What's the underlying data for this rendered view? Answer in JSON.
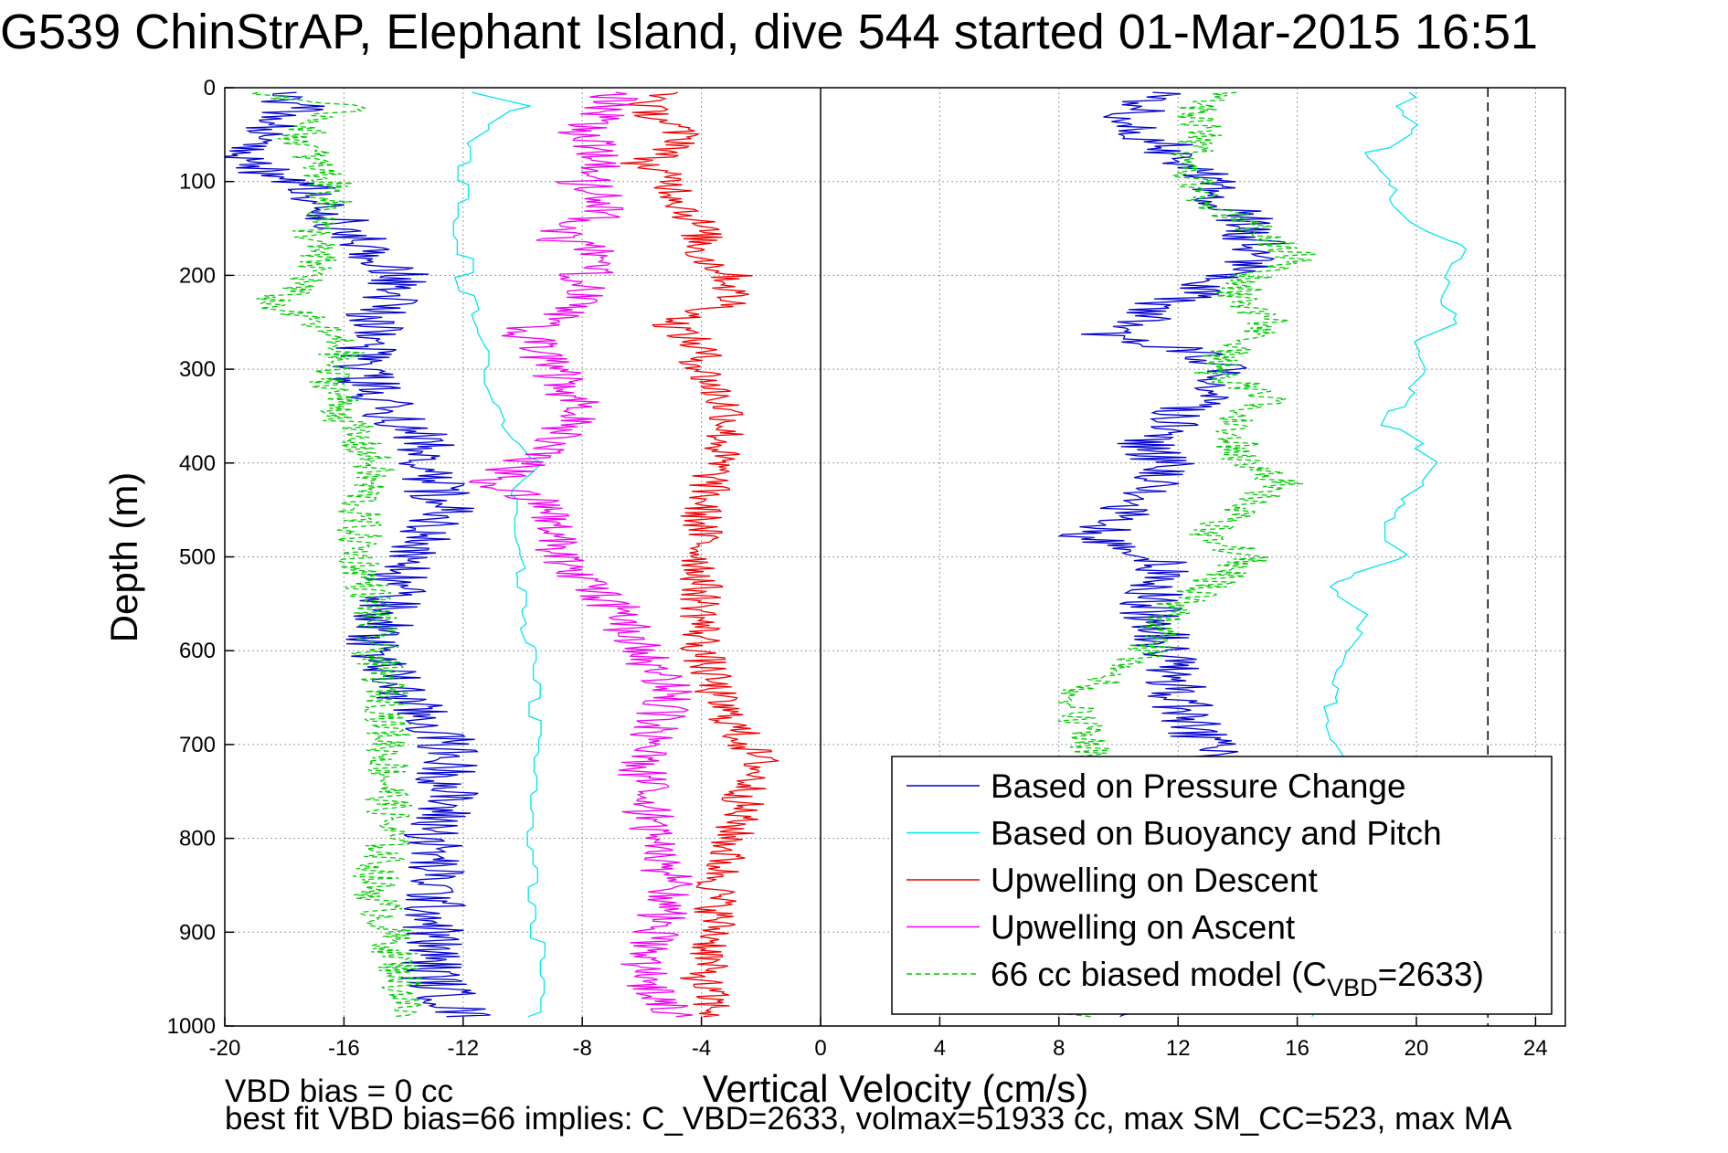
{
  "title": "G539 ChinStrAP, Elephant Island, dive 544 started 01-Mar-2015 16:51",
  "footer": {
    "line1": "VBD bias = 0 cc",
    "line2": "best fit VBD bias=66 implies: C_VBD=2633, volmax=51933 cc, max SM_CC=523, max MA"
  },
  "chart_data": {
    "type": "line",
    "xlabel": "Vertical Velocity (cm/s)",
    "ylabel": "Depth (m)",
    "xlim": [
      -20,
      25
    ],
    "ylim": [
      1000,
      0
    ],
    "y_reversed": true,
    "xticks": [
      -20,
      -16,
      -12,
      -8,
      -4,
      0,
      4,
      8,
      12,
      16,
      20,
      24
    ],
    "yticks": [
      0,
      100,
      200,
      300,
      400,
      500,
      600,
      700,
      800,
      900,
      1000
    ],
    "grid": true,
    "legend_position": "bottom-right",
    "reference_lines": [
      {
        "x": 0,
        "style": "solid",
        "color": "#000000"
      },
      {
        "x": 22.4,
        "style": "dashed",
        "color": "#000000"
      }
    ],
    "series": [
      {
        "name": "Based on Pressure Change",
        "color": "#0000CC",
        "style": "solid",
        "noise": 1.1,
        "descent": {
          "depth": [
            5,
            20,
            50,
            80,
            110,
            150,
            200,
            250,
            300,
            350,
            380,
            400,
            450,
            500,
            550,
            600,
            650,
            700,
            750,
            800,
            850,
            900,
            950,
            990
          ],
          "velocity": [
            -18.5,
            -17.5,
            -19,
            -19.5,
            -17,
            -16,
            -14,
            -15,
            -15.5,
            -14.5,
            -13,
            -13.5,
            -12.5,
            -14,
            -14.5,
            -15,
            -14,
            -12.5,
            -12.5,
            -13,
            -13,
            -13,
            -13,
            -12
          ]
        },
        "ascent": {
          "depth": [
            990,
            950,
            900,
            850,
            800,
            750,
            700,
            680,
            650,
            600,
            550,
            500,
            480,
            460,
            420,
            400,
            380,
            350,
            320,
            300,
            280,
            265,
            250,
            230,
            200,
            180,
            150,
            120,
            100,
            80,
            50,
            30,
            15,
            5
          ],
          "velocity": [
            11,
            11,
            11.5,
            11.5,
            12,
            12.5,
            13,
            12.5,
            12,
            11.5,
            11,
            11.5,
            9,
            10,
            11,
            11.5,
            11,
            12,
            13,
            13.5,
            12.5,
            9.5,
            10.5,
            11.5,
            14,
            14.5,
            14.5,
            13.5,
            13,
            12.5,
            11,
            10.5,
            11,
            12
          ]
        }
      },
      {
        "name": "Based on Buoyancy and Pitch",
        "color": "#00E5EE",
        "style": "step",
        "noise": 0.35,
        "descent": {
          "depth": [
            5,
            20,
            60,
            100,
            150,
            200,
            250,
            280,
            320,
            360,
            400,
            430,
            480,
            520,
            560,
            600,
            650,
            700,
            750,
            800,
            850,
            900,
            950,
            990
          ],
          "velocity": [
            -12,
            -10,
            -12,
            -12,
            -12,
            -12,
            -11.5,
            -11,
            -11,
            -10.5,
            -9.5,
            -10.5,
            -10.5,
            -10,
            -10,
            -9.5,
            -9.5,
            -9.5,
            -9.5,
            -9.5,
            -9.5,
            -9.5,
            -9.5,
            -9.5
          ]
        },
        "ascent": {
          "depth": [
            990,
            950,
            900,
            850,
            800,
            750,
            700,
            650,
            600,
            560,
            530,
            500,
            480,
            450,
            420,
            400,
            360,
            330,
            300,
            270,
            250,
            230,
            200,
            170,
            150,
            120,
            100,
            70,
            40,
            20,
            5
          ],
          "velocity": [
            16.5,
            17.5,
            18,
            18.5,
            18.5,
            18.5,
            17.5,
            17,
            17.5,
            18.5,
            17,
            20,
            19,
            19,
            20.5,
            21,
            19,
            19.5,
            20.5,
            20,
            21.5,
            20.5,
            21,
            21.5,
            20,
            19,
            19.5,
            18.5,
            20,
            19,
            20
          ]
        }
      },
      {
        "name": "Upwelling on Descent",
        "color": "#EE0000",
        "style": "solid",
        "noise": 0.75,
        "descent": {
          "depth": [
            5,
            20,
            40,
            60,
            80,
            100,
            130,
            150,
            180,
            200,
            230,
            250,
            280,
            300,
            350,
            400,
            450,
            500,
            550,
            600,
            650,
            700,
            720,
            750,
            800,
            850,
            900,
            950,
            990
          ],
          "velocity": [
            -5,
            -6,
            -5,
            -4.5,
            -6,
            -5,
            -4.5,
            -4,
            -4,
            -3,
            -3,
            -5,
            -4,
            -4,
            -3,
            -3.5,
            -4,
            -4,
            -4,
            -4,
            -3.5,
            -2.5,
            -2,
            -2.5,
            -3,
            -3.5,
            -3.5,
            -4,
            -3.5
          ]
        }
      },
      {
        "name": "Upwelling on Ascent",
        "color": "#EE00EE",
        "style": "solid",
        "noise": 0.9,
        "ascent": {
          "depth": [
            990,
            950,
            900,
            850,
            800,
            750,
            700,
            650,
            600,
            550,
            520,
            500,
            450,
            420,
            400,
            350,
            300,
            260,
            230,
            200,
            180,
            160,
            130,
            100,
            80,
            50,
            20,
            5
          ],
          "velocity": [
            -5,
            -6,
            -5.5,
            -5,
            -5.5,
            -6,
            -6,
            -5,
            -6,
            -7,
            -8,
            -9,
            -9,
            -11,
            -10,
            -8,
            -9,
            -10,
            -8,
            -8,
            -7,
            -9,
            -7,
            -8,
            -7,
            -8,
            -7,
            -7
          ]
        }
      },
      {
        "name": "66 cc biased model (C",
        "subscript": "VBD",
        "suffix": "=2633)",
        "color": "#00CC00",
        "style": "dashed",
        "noise": 0.8,
        "descent": {
          "depth": [
            5,
            20,
            50,
            80,
            100,
            130,
            150,
            180,
            200,
            230,
            250,
            280,
            300,
            350,
            380,
            400,
            450,
            500,
            550,
            600,
            650,
            700,
            750,
            800,
            850,
            900,
            950,
            990
          ],
          "velocity": [
            -19,
            -16,
            -17.5,
            -17,
            -16.5,
            -16.5,
            -17,
            -17,
            -17,
            -18.5,
            -17,
            -16,
            -16.5,
            -16,
            -15.5,
            -15,
            -15.5,
            -15.5,
            -15,
            -15,
            -14.5,
            -14.5,
            -14.5,
            -14.5,
            -15,
            -14.5,
            -14,
            -14
          ]
        },
        "ascent": {
          "depth": [
            990,
            950,
            900,
            850,
            800,
            750,
            700,
            650,
            620,
            600,
            550,
            520,
            500,
            480,
            450,
            420,
            400,
            350,
            330,
            300,
            250,
            220,
            200,
            180,
            150,
            120,
            100,
            80,
            50,
            20,
            5
          ],
          "velocity": [
            8.5,
            8.5,
            8.5,
            8.5,
            9,
            9,
            9,
            8.5,
            10,
            11,
            12,
            13.5,
            14.5,
            13,
            14,
            15.5,
            14,
            14,
            15,
            13,
            15,
            14,
            14.5,
            16,
            14.5,
            13,
            12.5,
            12,
            13,
            12.5,
            13.5
          ]
        }
      }
    ]
  }
}
